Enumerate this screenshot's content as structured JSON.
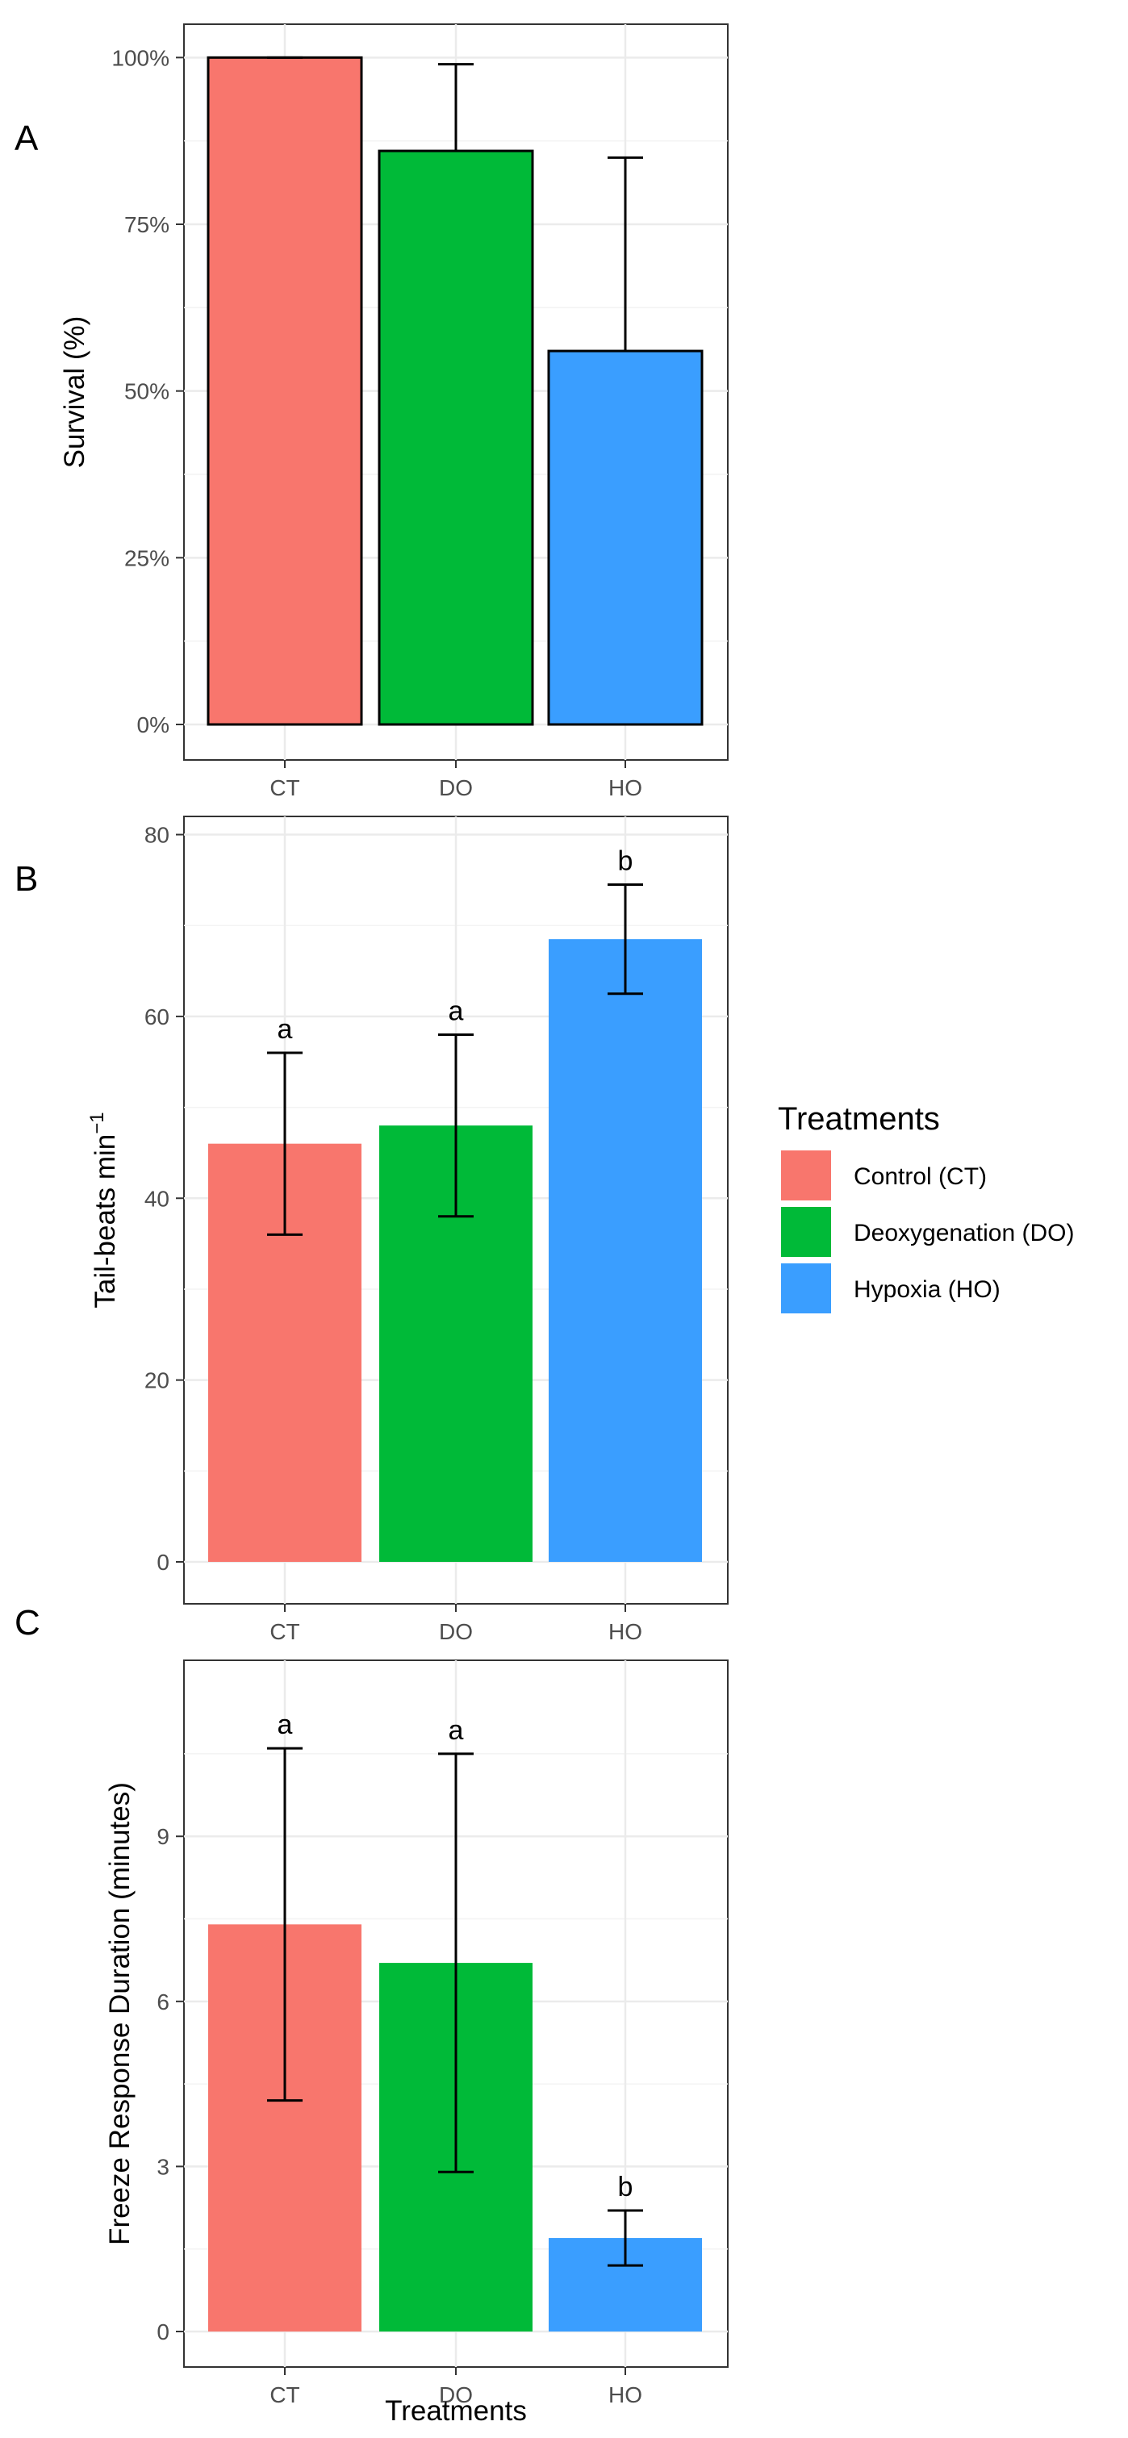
{
  "colors": {
    "CT": "#F8766D",
    "DO": "#00BA38",
    "HO": "#3A9EFF",
    "grid": "#ebebeb",
    "frame": "#333333"
  },
  "legend": {
    "title": "Treatments",
    "items": [
      {
        "key": "CT",
        "label": "Control (CT)"
      },
      {
        "key": "DO",
        "label": "Deoxygenation (DO)"
      },
      {
        "key": "HO",
        "label": "Hypoxia (HO)"
      }
    ]
  },
  "chart_data": [
    {
      "panel": "A",
      "type": "bar",
      "categories": [
        "CT",
        "DO",
        "HO"
      ],
      "values": [
        100,
        86,
        56
      ],
      "error_upper": [
        100,
        99,
        85
      ],
      "tick_values": [
        0,
        25,
        50,
        75,
        100
      ],
      "tick_labels": [
        "0%",
        "25%",
        "50%",
        "75%",
        "100%"
      ],
      "ylim": [
        0,
        105
      ],
      "ylabel": "Survival (%)",
      "xlabel": "",
      "bar_outline": true,
      "grid": true
    },
    {
      "panel": "B",
      "type": "bar",
      "categories": [
        "CT",
        "DO",
        "HO"
      ],
      "values": [
        46,
        48,
        68.5
      ],
      "error_lower": [
        36,
        38,
        62.5
      ],
      "error_upper": [
        56,
        58,
        74.5
      ],
      "significance": [
        "a",
        "a",
        "b"
      ],
      "tick_values": [
        0,
        20,
        40,
        60,
        80
      ],
      "tick_labels": [
        "0",
        "20",
        "40",
        "60",
        "80"
      ],
      "ylim": [
        0,
        82
      ],
      "ylabel": "Tail-beats min",
      "ylabel_superscript": "−1",
      "xlabel": "",
      "bar_outline": false,
      "grid": true
    },
    {
      "panel": "C",
      "type": "bar",
      "categories": [
        "CT",
        "DO",
        "HO"
      ],
      "values": [
        7.4,
        6.7,
        1.7
      ],
      "error_lower": [
        4.2,
        2.9,
        1.2
      ],
      "error_upper": [
        10.6,
        10.5,
        2.2
      ],
      "significance": [
        "a",
        "a",
        "b"
      ],
      "tick_values": [
        0,
        3,
        6,
        9
      ],
      "tick_labels": [
        "0",
        "3",
        "6",
        "9"
      ],
      "ylim": [
        0,
        12.2
      ],
      "ylabel": "Freeze Response Duration (minutes)",
      "xlabel": "Treatments",
      "bar_outline": false,
      "grid": true
    }
  ]
}
